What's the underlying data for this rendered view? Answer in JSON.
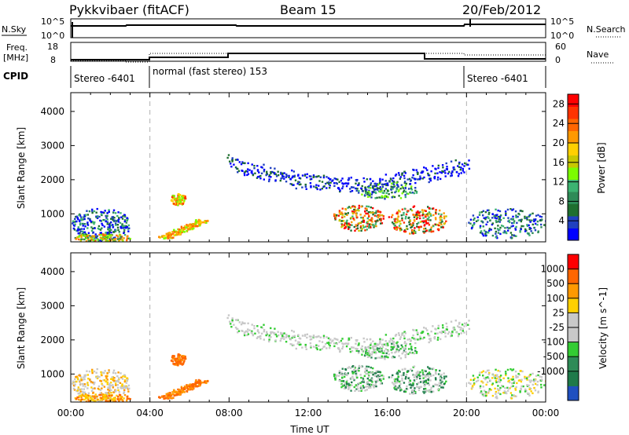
{
  "header": {
    "radar": "Pykkvibaer (fitACF)",
    "beam": "Beam 15",
    "date": "20/Feb/2012"
  },
  "status_panels": {
    "nsky_label": "N.Sky",
    "nsky_ticks": [
      "10^5",
      "10^0"
    ],
    "nsearch_label": "N.Search",
    "nsearch_ticks": [
      "10^5",
      "10^0"
    ],
    "freq_label": "Freq.",
    "freq_unit": "[MHz]",
    "freq_ticks": [
      "18",
      "8"
    ],
    "nave_label": "Nave",
    "nave_ticks": [
      "60",
      "0"
    ],
    "cpid_label": "CPID",
    "cpid_segments": [
      "Stereo -6401",
      "normal (fast stereo) 153",
      "Stereo -6401"
    ]
  },
  "chart_data": [
    {
      "type": "heatmap",
      "title": "",
      "xlabel": "",
      "ylabel": "Slant Range [km]",
      "ylim": [
        180,
        4550
      ],
      "xlim": [
        "00:00",
        "24:00"
      ],
      "y_ticks": [
        "1000",
        "2000",
        "3000",
        "4000"
      ],
      "colorbar": {
        "label": "Power [dB]",
        "ticks": [
          "4",
          "8",
          "12",
          "16",
          "20",
          "24",
          "28"
        ],
        "colors": [
          "#0000ff",
          "#2040c0",
          "#1f6f2f",
          "#2e8b57",
          "#3cb371",
          "#7cfc00",
          "#c8c800",
          "#ffd000",
          "#ff9900",
          "#ff6600",
          "#ff3300",
          "#ff0000"
        ]
      }
    },
    {
      "type": "heatmap",
      "title": "",
      "xlabel": "Time UT",
      "ylabel": "Slant Range [km]",
      "ylim": [
        180,
        4550
      ],
      "xlim": [
        "00:00",
        "24:00"
      ],
      "y_ticks": [
        "1000",
        "2000",
        "3000",
        "4000"
      ],
      "x_ticks": [
        "00:00",
        "04:00",
        "08:00",
        "12:00",
        "16:00",
        "20:00",
        "00:00"
      ],
      "colorbar": {
        "label": "Velocity [m s^-1]",
        "ticks": [
          "1000",
          "500",
          "100",
          "25",
          "-25",
          "-100",
          "-500",
          "-1000"
        ],
        "colors": [
          "#2050c0",
          "#1f7a4a",
          "#2e8b57",
          "#33cc33",
          "#c8c8c8",
          "#c8c8c8",
          "#ffd000",
          "#ff9900",
          "#ff6600",
          "#ff0000"
        ]
      }
    }
  ]
}
